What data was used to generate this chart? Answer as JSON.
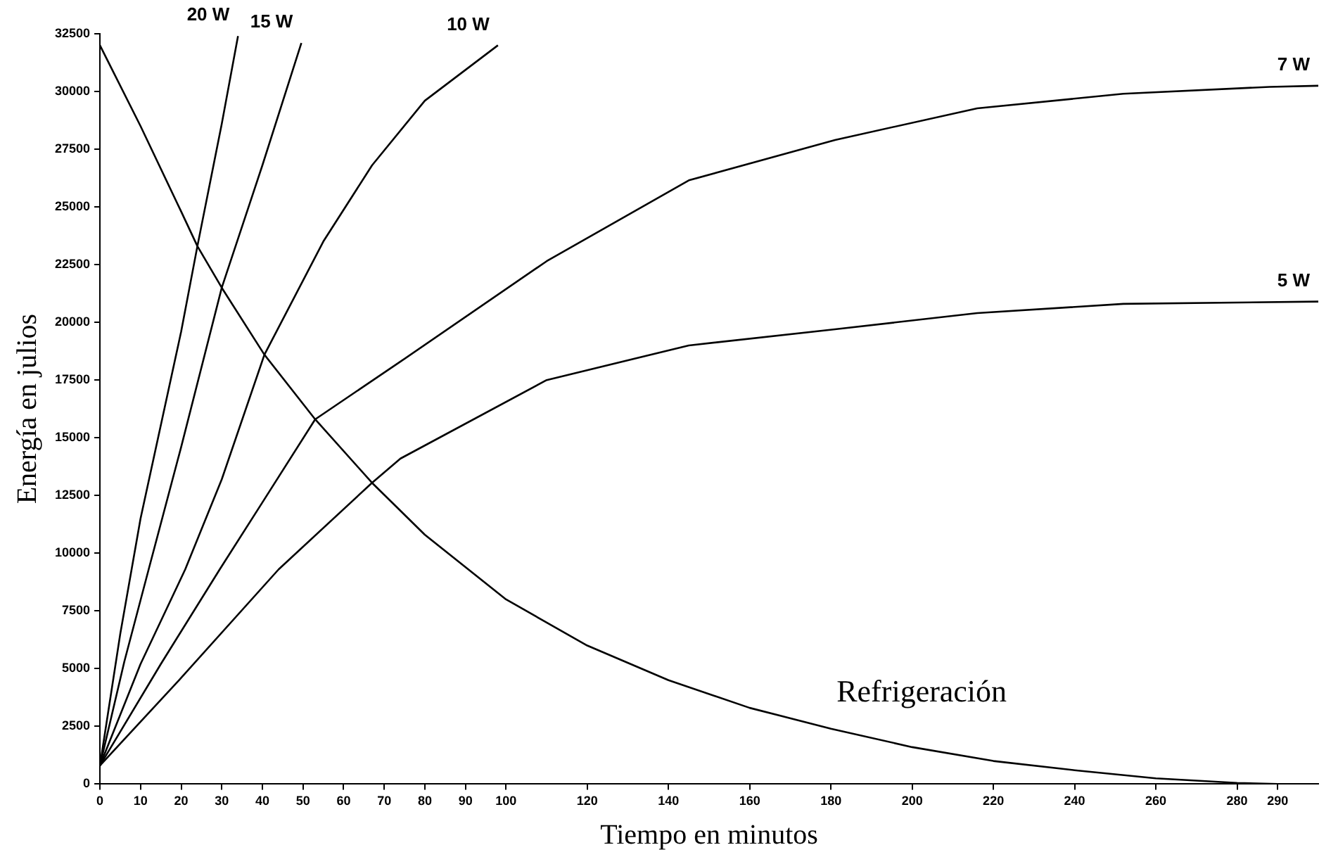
{
  "chart_data": {
    "type": "line",
    "xlabel": "Tiempo en minutos",
    "ylabel": "Energía en julios",
    "xlim": [
      0,
      300
    ],
    "xticks": [
      0,
      10,
      20,
      30,
      40,
      50,
      60,
      70,
      80,
      90,
      100,
      120,
      140,
      160,
      180,
      200,
      220,
      240,
      260,
      280,
      290
    ],
    "ylim": [
      0,
      32500
    ],
    "yticks": [
      0,
      2500,
      5000,
      7500,
      10000,
      12500,
      15000,
      17500,
      20000,
      22500,
      25000,
      27500,
      30000,
      32500
    ],
    "grid": false,
    "legend": false,
    "marker": "none",
    "line_style": "solid",
    "series": [
      {
        "name": "Refrigeración",
        "color": "#000000",
        "x": [
          0,
          10,
          20,
          24,
          30,
          40.5,
          53,
          67,
          80,
          100,
          120,
          140,
          160,
          180,
          200,
          220,
          240,
          260,
          280,
          290
        ],
        "values": [
          32000,
          28500,
          24800,
          23300,
          21500,
          18600,
          15800,
          13050,
          10800,
          8000,
          6000,
          4500,
          3300,
          2400,
          1600,
          1000,
          600,
          250,
          50,
          0
        ]
      },
      {
        "name": "20 W",
        "color": "#000000",
        "x": [
          0,
          5,
          10,
          20,
          24,
          30,
          34
        ],
        "values": [
          800,
          6500,
          11500,
          19600,
          23300,
          28600,
          32400
        ]
      },
      {
        "name": "15 W",
        "color": "#000000",
        "x": [
          0,
          6,
          12,
          20,
          30,
          40,
          49.6
        ],
        "values": [
          800,
          5300,
          9300,
          14600,
          21500,
          26800,
          32100
        ]
      },
      {
        "name": "10 W",
        "color": "#000000",
        "x": [
          0,
          10,
          21,
          30,
          40.5,
          55,
          67,
          80,
          98
        ],
        "values": [
          800,
          5200,
          9300,
          13200,
          18600,
          23500,
          26800,
          29600,
          32000
        ]
      },
      {
        "name": "7 W",
        "color": "#000000",
        "x": [
          0,
          15,
          29.5,
          40,
          53,
          74,
          110,
          145,
          181,
          216,
          252,
          288,
          300
        ],
        "values": [
          800,
          5200,
          9300,
          12200,
          15800,
          18300,
          22650,
          26150,
          27900,
          29270,
          29900,
          30200,
          30250
        ]
      },
      {
        "name": "5 W",
        "color": "#000000",
        "x": [
          0,
          20,
          44,
          67,
          74,
          110,
          145,
          181,
          216,
          252,
          300
        ],
        "values": [
          800,
          4600,
          9300,
          13050,
          14100,
          17500,
          19000,
          19700,
          20400,
          20800,
          20900
        ]
      }
    ]
  }
}
